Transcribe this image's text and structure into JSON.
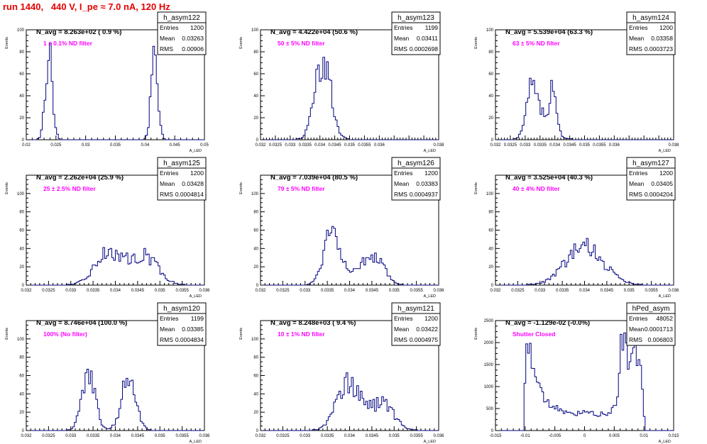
{
  "title": "run 1440,   440 V, I_pe ≈ 7.0 nA, 120 Hz",
  "colors": {
    "title": "#e60000",
    "histogram": "#000080",
    "annotation": "#ff00ff",
    "axis": "#000000"
  },
  "stat_labels": {
    "entries": "Entries",
    "mean": "Mean",
    "rms": "RMS"
  },
  "chart_data": [
    {
      "type": "bar",
      "name": "h_asym122",
      "headline": "N_avg = 8.263e+02 ( 0.9 %)",
      "annotation": "1 ± 0.1% ND filter",
      "stats": {
        "entries": "1200",
        "mean": "0.03263",
        "rms": "0.00906"
      },
      "xlabel": "A_LED",
      "ylabel": "Events",
      "xlim": [
        0.02,
        0.05
      ],
      "ylim": [
        0,
        100
      ],
      "xticks": [
        0.02,
        0.025,
        0.03,
        0.035,
        0.04,
        0.045,
        0.05
      ],
      "xticklabels": [
        "0.02",
        "0.025",
        "0.03",
        "0.035",
        "0.04",
        "0.045",
        "0.05"
      ],
      "yticks": [
        0,
        20,
        40,
        60,
        80,
        100
      ],
      "yticklabels": [
        "0",
        "20",
        "40",
        "60",
        "80",
        "100"
      ],
      "peaks": [
        [
          0.0238,
          0.0006,
          78,
          0
        ],
        [
          0.0416,
          0.00055,
          80,
          0
        ]
      ]
    },
    {
      "type": "bar",
      "name": "h_asym123",
      "headline": "N_avg = 4.422e+04 (50.6 %)",
      "annotation": "50 ± 5% ND filter",
      "stats": {
        "entries": "1199",
        "mean": "0.03411",
        "rms": "0.0002698"
      },
      "xlabel": "A_LED",
      "ylabel": "Events",
      "xlim": [
        0.032,
        0.038
      ],
      "ylim": [
        0,
        100
      ],
      "xticks": [
        0.032,
        0.0325,
        0.033,
        0.0335,
        0.034,
        0.0345,
        0.035,
        0.0355,
        0.036,
        0.0365,
        0.037,
        0.0375,
        0.038
      ],
      "xticklabels": [
        "0.032",
        "0.0325",
        "0.033",
        "0.0335",
        "0.034",
        "0.0345",
        "0.035",
        "0.0355",
        "0.036",
        "",
        "",
        "",
        "0.038"
      ],
      "yticks": [
        0,
        20,
        40,
        60,
        80,
        100
      ],
      "yticklabels": [
        "0",
        "20",
        "40",
        "60",
        "80",
        "100"
      ],
      "peaks": [
        [
          0.0341,
          0.00027,
          72,
          0
        ]
      ]
    },
    {
      "type": "bar",
      "name": "h_asym124",
      "headline": "N_avg = 5.539e+04 (63.3 %)",
      "annotation": "63 ± 5% ND filter",
      "stats": {
        "entries": "1200",
        "mean": "0.03358",
        "rms": "0.0003723"
      },
      "xlabel": "A_LED",
      "ylabel": "Events",
      "xlim": [
        0.032,
        0.038
      ],
      "ylim": [
        0,
        100
      ],
      "xticks": [
        0.032,
        0.0325,
        0.033,
        0.0335,
        0.034,
        0.0345,
        0.035,
        0.0355,
        0.036,
        0.0365,
        0.037,
        0.0375,
        0.038
      ],
      "xticklabels": [
        "0.032",
        "0.0325",
        "0.033",
        "0.0335",
        "0.034",
        "0.0345",
        "0.035",
        "0.0355",
        "0.036",
        "",
        "",
        "",
        "0.038"
      ],
      "yticks": [
        0,
        20,
        40,
        60,
        80,
        100
      ],
      "yticklabels": [
        "0",
        "20",
        "40",
        "60",
        "80",
        "100"
      ],
      "peaks": [
        [
          0.0332,
          0.00017,
          40,
          0
        ],
        [
          0.03395,
          0.0001,
          45,
          0
        ],
        [
          0.0336,
          0.00035,
          20,
          0
        ]
      ]
    },
    {
      "type": "bar",
      "name": "h_asym125",
      "headline": "N_avg = 2.262e+04 (25.9 %)",
      "annotation": "25 ± 2.5% ND filter",
      "stats": {
        "entries": "1200",
        "mean": "0.03428",
        "rms": "0.0004814"
      },
      "xlabel": "A_LED",
      "ylabel": "Events",
      "xlim": [
        0.032,
        0.036
      ],
      "ylim": [
        0,
        120
      ],
      "xticks": [
        0.032,
        0.0325,
        0.033,
        0.0335,
        0.034,
        0.0345,
        0.035,
        0.0355,
        0.036
      ],
      "xticklabels": [
        "0.032",
        "0.0325",
        "0.033",
        "0.0335",
        "0.034",
        "0.0345",
        "0.035",
        "0.0355",
        "0.036"
      ],
      "yticks": [
        0,
        20,
        40,
        60,
        80,
        100,
        120
      ],
      "yticklabels": [
        "0",
        "20",
        "40",
        "60",
        "80",
        "100",
        ""
      ],
      "peaks": [
        [
          0.03385,
          0.0003,
          36,
          0
        ],
        [
          0.03465,
          0.0003,
          32,
          0
        ]
      ]
    },
    {
      "type": "bar",
      "name": "h_asym126",
      "headline": "N_avg = 7.039e+04 (80.5 %)",
      "annotation": "79 ± 5% ND filter",
      "stats": {
        "entries": "1200",
        "mean": "0.03383",
        "rms": "0.0004937"
      },
      "xlabel": "A_LED",
      "ylabel": "Events",
      "xlim": [
        0.032,
        0.036
      ],
      "ylim": [
        0,
        120
      ],
      "xticks": [
        0.032,
        0.0325,
        0.033,
        0.0335,
        0.034,
        0.0345,
        0.035,
        0.0355,
        0.036
      ],
      "xticklabels": [
        "0.032",
        "0.0325",
        "0.033",
        "0.0335",
        "0.034",
        "0.0345",
        "0.035",
        "0.0355",
        "0.036"
      ],
      "yticks": [
        0,
        20,
        40,
        60,
        80,
        100,
        120
      ],
      "yticklabels": [
        "0",
        "20",
        "40",
        "60",
        "80",
        "100",
        ""
      ],
      "peaks": [
        [
          0.0336,
          0.00018,
          62,
          0
        ],
        [
          0.03455,
          0.00022,
          30,
          0
        ],
        [
          0.0341,
          0.0002,
          14,
          0
        ]
      ]
    },
    {
      "type": "bar",
      "name": "h_asym127",
      "headline": "N_avg = 3.525e+04 (40.3 %)",
      "annotation": "40 ± 4% ND filter",
      "stats": {
        "entries": "1200",
        "mean": "0.03405",
        "rms": "0.0004204"
      },
      "xlabel": "A_LED",
      "ylabel": "Events",
      "xlim": [
        0.032,
        0.036
      ],
      "ylim": [
        0,
        120
      ],
      "xticks": [
        0.032,
        0.0325,
        0.033,
        0.0335,
        0.034,
        0.0345,
        0.035,
        0.0355,
        0.036
      ],
      "xticklabels": [
        "0.032",
        "0.0325",
        "0.033",
        "0.0335",
        "0.034",
        "0.0345",
        "0.035",
        "0.0355",
        "0.036"
      ],
      "yticks": [
        0,
        20,
        40,
        60,
        80,
        100,
        120
      ],
      "yticklabels": [
        "0",
        "20",
        "40",
        "60",
        "80",
        "100",
        ""
      ],
      "peaks": [
        [
          0.034,
          0.00042,
          42,
          0
        ]
      ]
    },
    {
      "type": "bar",
      "name": "h_asym120",
      "headline": "N_avg = 8.746e+04 (100.0 %)",
      "annotation": "100% (No filter)",
      "stats": {
        "entries": "1199",
        "mean": "0.03385",
        "rms": "0.0004834"
      },
      "xlabel": "A_LED",
      "ylabel": "Events",
      "xlim": [
        0.032,
        0.036
      ],
      "ylim": [
        0,
        120
      ],
      "xticks": [
        0.032,
        0.0325,
        0.033,
        0.0335,
        0.034,
        0.0345,
        0.035,
        0.0355,
        0.036
      ],
      "xticklabels": [
        "0.032",
        "0.0325",
        "0.033",
        "0.0335",
        "0.034",
        "0.0345",
        "0.035",
        "0.0355",
        "0.036"
      ],
      "yticks": [
        0,
        20,
        40,
        60,
        80,
        100,
        120
      ],
      "yticklabels": [
        "0",
        "20",
        "40",
        "60",
        "80",
        "100",
        ""
      ],
      "peaks": [
        [
          0.0334,
          0.00015,
          60,
          0
        ],
        [
          0.0343,
          0.00016,
          58,
          0
        ]
      ]
    },
    {
      "type": "bar",
      "name": "h_asym121",
      "headline": "N_avg = 8.248e+03 ( 9.4 %)",
      "annotation": "10 ± 1% ND filter",
      "stats": {
        "entries": "1200",
        "mean": "0.03422",
        "rms": "0.0004975"
      },
      "xlabel": "A_LED",
      "ylabel": "Events",
      "xlim": [
        0.032,
        0.036
      ],
      "ylim": [
        0,
        120
      ],
      "xticks": [
        0.032,
        0.0325,
        0.033,
        0.0335,
        0.034,
        0.0345,
        0.035,
        0.0355,
        0.036
      ],
      "xticklabels": [
        "0.032",
        "0.0325",
        "0.033",
        "0.0335",
        "0.034",
        "0.0345",
        "0.035",
        "0.0355",
        "0.036"
      ],
      "yticks": [
        0,
        20,
        40,
        60,
        80,
        100,
        120
      ],
      "yticklabels": [
        "0",
        "20",
        "40",
        "60",
        "80",
        "100",
        ""
      ],
      "peaks": [
        [
          0.03395,
          0.00025,
          50,
          0
        ],
        [
          0.03475,
          0.00025,
          24,
          0
        ],
        [
          0.0344,
          0.0004,
          8,
          0
        ]
      ]
    },
    {
      "type": "bar",
      "name": "hPed_asym",
      "headline": "N_avg = -1.129e-02 (-0.0%)",
      "annotation": "Shutter Closed",
      "stats": {
        "entries": "48052",
        "mean": "0.0001713",
        "rms": "0.006803"
      },
      "xlabel": "A_LED",
      "ylabel": "Events",
      "xlim": [
        -0.015,
        0.015
      ],
      "ylim": [
        0,
        2500
      ],
      "xticks": [
        -0.015,
        -0.01,
        -0.005,
        0,
        0.005,
        0.01,
        0.015
      ],
      "xticklabels": [
        "-0.015",
        "-0.01",
        "-0.005",
        "0",
        "0.005",
        "0.01",
        "0.015"
      ],
      "yticks": [
        0,
        500,
        1000,
        1500,
        2000,
        2500
      ],
      "yticklabels": [
        "0",
        "500",
        "1000",
        "1500",
        "2000",
        "2500"
      ],
      "range": [
        -0.0102,
        0.0102
      ],
      "ped_shape": [
        [
          -0.0102,
          700
        ],
        [
          -0.0096,
          2150
        ],
        [
          -0.0088,
          1500
        ],
        [
          -0.0075,
          900
        ],
        [
          -0.006,
          600
        ],
        [
          -0.004,
          450
        ],
        [
          -0.002,
          350
        ],
        [
          0,
          420
        ],
        [
          0.002,
          380
        ],
        [
          0.004,
          360
        ],
        [
          0.0055,
          600
        ],
        [
          0.0062,
          2300
        ],
        [
          0.0075,
          1500
        ],
        [
          0.0085,
          1900
        ],
        [
          0.0095,
          1400
        ],
        [
          0.0102,
          0
        ]
      ]
    }
  ]
}
